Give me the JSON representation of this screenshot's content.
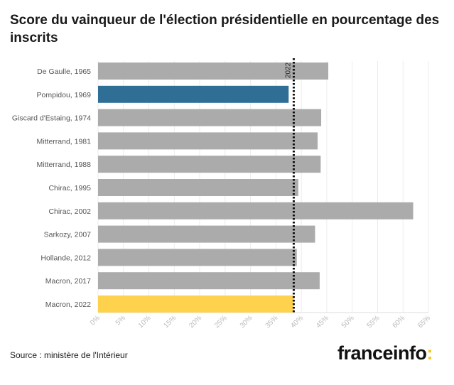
{
  "title": "Score du vainqueur de l'élection présidentielle en pourcentage des inscrits",
  "source": "Source : ministère de l'Intérieur",
  "logo": {
    "text": "franceinfo",
    "accent": ":"
  },
  "colors": {
    "default": "#ababab",
    "highlight_blue": "#2f6f95",
    "highlight_yellow": "#ffd24d",
    "reference_line": "#111111"
  },
  "chart_data": {
    "type": "bar",
    "orientation": "horizontal",
    "title": "Score du vainqueur de l'élection présidentielle en pourcentage des inscrits",
    "categories": [
      "De Gaulle, 1965",
      "Pompidou, 1969",
      "Giscard d'Estaing, 1974",
      "Mitterrand, 1981",
      "Mitterrand, 1988",
      "Chirac, 1995",
      "Chirac, 2002",
      "Sarkozy, 2007",
      "Hollande, 2012",
      "Macron, 2017",
      "Macron, 2022"
    ],
    "values": [
      45.3,
      37.5,
      43.9,
      43.2,
      43.8,
      39.4,
      62.0,
      42.7,
      39.1,
      43.6,
      38.5
    ],
    "bar_colors": [
      "default",
      "highlight_blue",
      "default",
      "default",
      "default",
      "default",
      "default",
      "default",
      "default",
      "default",
      "highlight_yellow"
    ],
    "xlim": [
      0,
      65
    ],
    "xticks": [
      0,
      5,
      10,
      15,
      20,
      25,
      30,
      35,
      40,
      45,
      50,
      55,
      60,
      65
    ],
    "xtick_suffix": "%",
    "reference_line": {
      "value": 38.5,
      "label": "2022",
      "style": "dotted"
    },
    "grid": true,
    "xlabel": "",
    "ylabel": ""
  }
}
